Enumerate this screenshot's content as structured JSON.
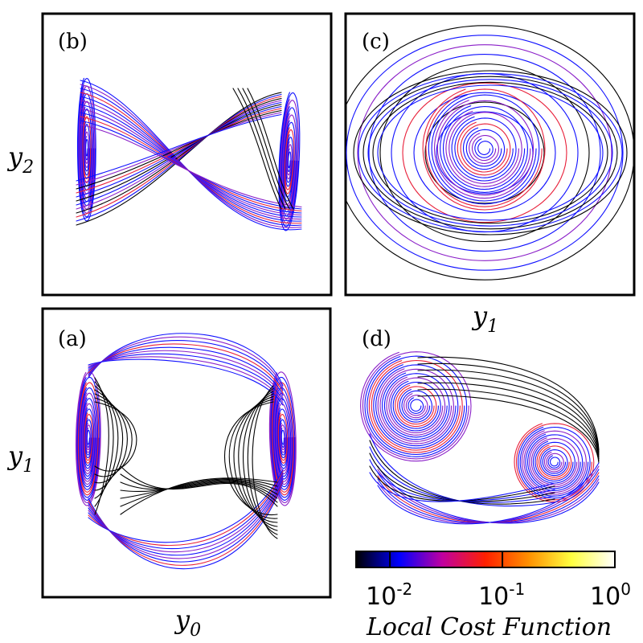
{
  "chart_data": [
    {
      "type": "line",
      "panel_label": "(a)",
      "xlabel": "y",
      "xlabel_sub": "0",
      "ylabel": "y",
      "ylabel_sub": "1",
      "grid": false
    },
    {
      "type": "line",
      "panel_label": "(b)",
      "xlabel": "",
      "ylabel": "y",
      "ylabel_sub": "2",
      "grid": false
    },
    {
      "type": "line",
      "panel_label": "(c)",
      "xlabel": "y",
      "xlabel_sub": "1",
      "ylabel": "",
      "grid": false
    },
    {
      "type": "line",
      "panel_label": "(d)",
      "xlabel": "",
      "ylabel": "",
      "grid": false
    }
  ],
  "colorbar": {
    "title": "Local Cost Function",
    "scale": "log",
    "range": [
      0.005,
      1
    ],
    "ticks": [
      {
        "base": "10",
        "exp": "-2",
        "value": 0.01
      },
      {
        "base": "10",
        "exp": "-1",
        "value": 0.1
      },
      {
        "base": "10",
        "exp": "0",
        "value": 1
      }
    ],
    "colors": [
      "#000000",
      "#0000ff",
      "#c000a0",
      "#ff2000",
      "#ff9000",
      "#ffff40",
      "#ffffff"
    ]
  },
  "line_colors": {
    "black": "#000000",
    "blue": "#1010ff",
    "purple": "#8a1ec8",
    "red": "#e8203a"
  }
}
